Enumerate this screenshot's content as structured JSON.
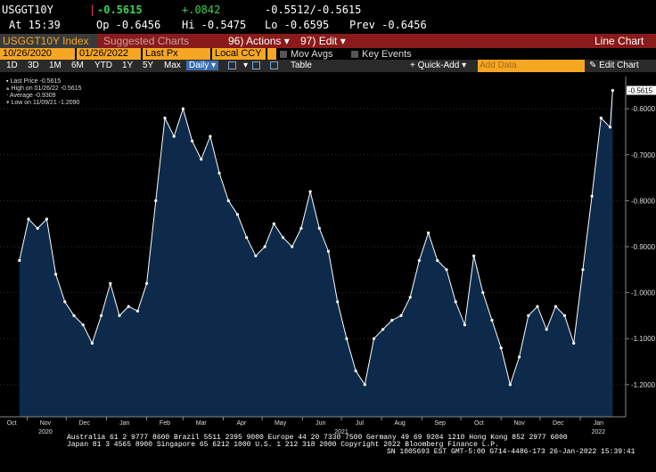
{
  "quote": {
    "ticker": "USGGT10Y",
    "last": "-0.5615",
    "change": "+.0842",
    "bid_ask": "-0.5512/-0.5615",
    "time": "At 15:39",
    "open": "Op -0.6456",
    "high": "Hi -0.5475",
    "low": "Lo -0.6595",
    "prev": "Prev -0.6456"
  },
  "title_bar": {
    "security": "USGGT10Y Index",
    "suggested": "Suggested Charts",
    "actions_num": "96)",
    "actions": "Actions",
    "edit_num": "97)",
    "edit": "Edit",
    "chart_type": "Line Chart"
  },
  "fields": {
    "start_date": "10/26/2020",
    "end_date": "01/26/2022",
    "price_field": "Last Px",
    "currency": "Local CCY",
    "mov_avgs": "Mov Avgs",
    "key_events": "Key Events"
  },
  "toolbar": {
    "ranges": [
      "1D",
      "3D",
      "1M",
      "6M",
      "YTD",
      "1Y",
      "5Y",
      "Max"
    ],
    "frequency": "Daily",
    "table": "Table",
    "quick_add": "+ Quick-Add",
    "add_data": "Add Data",
    "edit_chart": "Edit Chart"
  },
  "legend": [
    "Last Price        -0.5615",
    "High on 01/26/22 -0.5615",
    "Average            -0.9309",
    "Low on 11/09/21   -1.2090"
  ],
  "last_value_tag": "-0.5615",
  "colors": {
    "accent_red": "#8b1a1a",
    "field_orange": "#f5a623",
    "line": "#ffffff",
    "area": "#0d2a4a",
    "positive": "#39d353",
    "negative": "#ff4040"
  },
  "chart_data": {
    "type": "area",
    "ylim": [
      -1.27,
      -0.53
    ],
    "y_ticks": [
      "-0.6000",
      "-0.7000",
      "-0.8000",
      "-0.9000",
      "-1.0000",
      "-1.1000",
      "-1.2000"
    ],
    "y_tick_values": [
      -0.6,
      -0.7,
      -0.8,
      -0.9,
      -1.0,
      -1.1,
      -1.2
    ],
    "x_ticks": [
      "Oct",
      "Nov",
      "Dec",
      "Jan",
      "Feb",
      "Mar",
      "Apr",
      "May",
      "Jun",
      "Jul",
      "Aug",
      "Sep",
      "Oct",
      "Nov",
      "Dec",
      "Jan"
    ],
    "x_years": [
      "2020",
      "2021",
      "2022"
    ],
    "series": [
      {
        "x": [
          "2020-10-26",
          "2020-11-02",
          "2020-11-09",
          "2020-11-16",
          "2020-11-23",
          "2020-11-30",
          "2020-12-07",
          "2020-12-14",
          "2020-12-21",
          "2020-12-28",
          "2021-01-04",
          "2021-01-11",
          "2021-01-18",
          "2021-01-25",
          "2021-02-01",
          "2021-02-08",
          "2021-02-15",
          "2021-02-22",
          "2021-03-01",
          "2021-03-08",
          "2021-03-15",
          "2021-03-22",
          "2021-03-29",
          "2021-04-05",
          "2021-04-12",
          "2021-04-19",
          "2021-04-26",
          "2021-05-03",
          "2021-05-10",
          "2021-05-17",
          "2021-05-24",
          "2021-05-31",
          "2021-06-07",
          "2021-06-14",
          "2021-06-21",
          "2021-06-28",
          "2021-07-05",
          "2021-07-12",
          "2021-07-19",
          "2021-07-26",
          "2021-08-02",
          "2021-08-09",
          "2021-08-16",
          "2021-08-23",
          "2021-08-30",
          "2021-09-06",
          "2021-09-13",
          "2021-09-20",
          "2021-09-27",
          "2021-10-04",
          "2021-10-11",
          "2021-10-18",
          "2021-10-25",
          "2021-11-01",
          "2021-11-08",
          "2021-11-15",
          "2021-11-22",
          "2021-11-29",
          "2021-12-06",
          "2021-12-13",
          "2021-12-20",
          "2021-12-27",
          "2022-01-03",
          "2022-01-10",
          "2022-01-17",
          "2022-01-24",
          "2022-01-26"
        ],
        "y": [
          -0.93,
          -0.84,
          -0.86,
          -0.84,
          -0.96,
          -1.02,
          -1.05,
          -1.07,
          -1.11,
          -1.05,
          -0.98,
          -1.05,
          -1.03,
          -1.04,
          -0.98,
          -0.8,
          -0.62,
          -0.66,
          -0.6,
          -0.67,
          -0.71,
          -0.66,
          -0.74,
          -0.8,
          -0.83,
          -0.88,
          -0.92,
          -0.9,
          -0.85,
          -0.88,
          -0.9,
          -0.86,
          -0.78,
          -0.86,
          -0.91,
          -1.02,
          -1.1,
          -1.17,
          -1.2,
          -1.1,
          -1.08,
          -1.06,
          -1.05,
          -1.01,
          -0.93,
          -0.87,
          -0.93,
          -0.95,
          -1.02,
          -1.07,
          -0.92,
          -1.0,
          -1.06,
          -1.12,
          -1.2,
          -1.14,
          -1.05,
          -1.03,
          -1.08,
          -1.03,
          -1.05,
          -1.11,
          -0.95,
          -0.79,
          -0.62,
          -0.64,
          -0.56
        ]
      }
    ]
  },
  "footer": {
    "line1": "Australia 61 2 9777 8600 Brazil 5511 2395 9000 Europe 44 20 7330 7500 Germany 49 69 9204 1210 Hong Kong 852 2977 6000",
    "line2": "Japan 81 3 4565 8900         Singapore 65 6212 1000         U.S. 1 212 318 2000           Copyright 2022 Bloomberg Finance L.P.",
    "line3": "SN 1005693 EST  GMT-5:00 G714-4486-173 26-Jan-2022 15:39:41"
  }
}
